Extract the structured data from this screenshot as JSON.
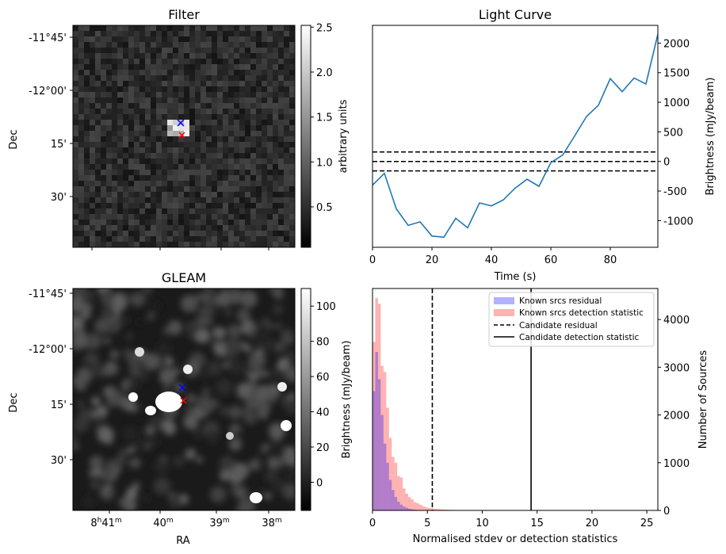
{
  "colors": {
    "line": "#1f77b4",
    "hist_known_residual": "#0000ff",
    "hist_known_detection": "#ff0000",
    "marker_blue": "#0000ff",
    "marker_red": "#ff0000"
  },
  "filter_panel": {
    "title": "Filter",
    "ylabel": "Dec",
    "dec_ticks": [
      "-11°45'",
      "-12°00'",
      "15'",
      "30'"
    ],
    "colorbar": {
      "label": "arbitrary units",
      "range": [
        0.05,
        2.52
      ],
      "ticks": [
        "0.5",
        "1.0",
        "1.5",
        "2.0",
        "2.5"
      ]
    },
    "markers": [
      {
        "symbol": "x",
        "color": "blue"
      },
      {
        "symbol": "x",
        "color": "red"
      }
    ]
  },
  "gleam_panel": {
    "title": "GLEAM",
    "xlabel": "RA",
    "ylabel": "Dec",
    "ra_ticks": [
      {
        "main": "8",
        "sup1": "h",
        "mid": "41",
        "sup2": "m"
      },
      {
        "main": "40",
        "sup2": "m"
      },
      {
        "main": "39",
        "sup2": "m"
      },
      {
        "main": "38",
        "sup2": "m"
      }
    ],
    "dec_ticks": [
      "-11°45'",
      "-12°00'",
      "15'",
      "30'"
    ],
    "colorbar": {
      "label": "Brightness (mJy/beam)",
      "range": [
        -16,
        110
      ],
      "ticks": [
        "0",
        "20",
        "40",
        "60",
        "80",
        "100"
      ]
    },
    "markers": [
      {
        "symbol": "x",
        "color": "blue"
      },
      {
        "symbol": "x",
        "color": "red"
      }
    ]
  },
  "chart_data": [
    {
      "type": "line",
      "title": "Light Curve",
      "xlabel": "Time (s)",
      "ylabel": "Brightness (mJy/beam)",
      "xlim": [
        0,
        96
      ],
      "ylim": [
        -1450,
        2300
      ],
      "xticks": [
        "0",
        "20",
        "40",
        "60",
        "80"
      ],
      "yticks": [
        "-1000",
        "-500",
        "0",
        "500",
        "1000",
        "1500",
        "2000"
      ],
      "series": [
        {
          "x": [
            0,
            4,
            8,
            12,
            16,
            20,
            24,
            28,
            32,
            36,
            40,
            44,
            48,
            52,
            56,
            60,
            64,
            68,
            72,
            76,
            80,
            84,
            88,
            92,
            96
          ],
          "y": [
            -400,
            -200,
            -800,
            -1080,
            -1020,
            -1260,
            -1280,
            -960,
            -1120,
            -700,
            -750,
            -650,
            -450,
            -300,
            -420,
            -20,
            110,
            430,
            760,
            950,
            1400,
            1180,
            1410,
            1310,
            2150
          ]
        }
      ],
      "hlines": [
        -160,
        0,
        160
      ]
    },
    {
      "type": "bar",
      "xlabel": "Normalised stdev or detection statistics",
      "ylabel": "Number of Sources",
      "xlim": [
        0,
        26
      ],
      "ylim": [
        0,
        4650
      ],
      "xticks": [
        "0",
        "5",
        "10",
        "15",
        "20",
        "25"
      ],
      "yticks": [
        "0",
        "1000",
        "2000",
        "3000",
        "4000"
      ],
      "bin_start": 0,
      "bin_width": 0.25,
      "series": [
        {
          "name": "Known srcs residual",
          "values": [
            2500,
            3320,
            2750,
            2000,
            1400,
            1000,
            640,
            430,
            280,
            180,
            120,
            80,
            55,
            35,
            25,
            15,
            10,
            6,
            4,
            2,
            2,
            1
          ]
        },
        {
          "name": "Known srcs detection statistic",
          "values": [
            3530,
            4450,
            4330,
            3030,
            2900,
            2150,
            1520,
            1120,
            1000,
            720,
            690,
            460,
            350,
            280,
            230,
            170,
            150,
            120,
            90,
            70,
            55,
            45,
            35,
            30,
            25,
            20,
            18,
            15,
            12,
            10,
            8,
            7,
            6,
            5,
            4,
            3,
            3,
            2,
            2,
            2,
            2,
            1,
            1,
            1,
            1,
            1,
            1,
            1,
            1,
            1,
            1,
            1,
            1,
            1,
            1,
            1
          ]
        }
      ],
      "vlines": [
        {
          "name": "Candidate residual",
          "x": 5.45,
          "style": "dashed"
        },
        {
          "name": "Candidate detection statistic",
          "x": 14.45,
          "style": "solid"
        }
      ],
      "legend_position": "top-right"
    }
  ]
}
